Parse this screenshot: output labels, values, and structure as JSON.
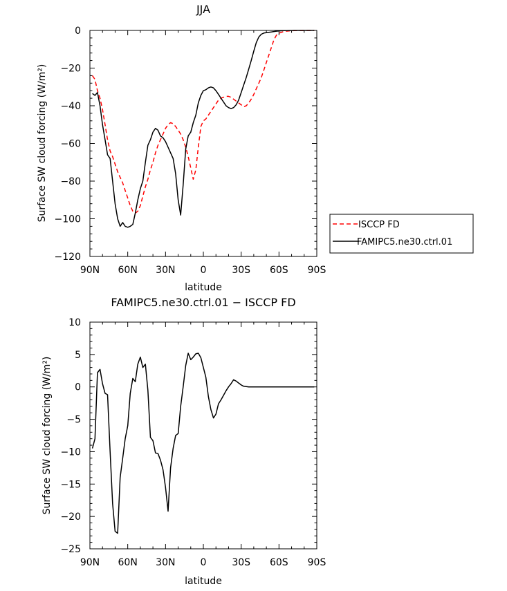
{
  "chart_data": [
    {
      "type": "line",
      "title": "JJA",
      "xlabel": "latitude",
      "ylabel": "Surface SW cloud forcing (W/m²)",
      "xlim": [
        90,
        -90
      ],
      "ylim": [
        -120,
        0
      ],
      "xticks": [
        90,
        60,
        30,
        0,
        -30,
        -60,
        -90
      ],
      "xtick_labels": [
        "90N",
        "60N",
        "30N",
        "0",
        "30S",
        "60S",
        "90S"
      ],
      "yticks": [
        0,
        -20,
        -40,
        -60,
        -80,
        -100,
        -120
      ],
      "ytick_labels": [
        "0",
        "−20",
        "−40",
        "−60",
        "−80",
        "−100",
        "−120"
      ],
      "legend": "outside-right",
      "series": [
        {
          "name": "ISCCP FD",
          "color": "#ff0000",
          "dash": "dashed",
          "x": [
            88,
            86,
            84,
            82,
            80,
            78,
            76,
            74,
            72,
            70,
            68,
            66,
            64,
            62,
            60,
            58,
            56,
            54,
            52,
            50,
            48,
            46,
            44,
            42,
            40,
            38,
            36,
            34,
            32,
            30,
            28,
            26,
            24,
            22,
            20,
            18,
            16,
            14,
            12,
            10,
            8,
            6,
            4,
            2,
            0,
            -2,
            -4,
            -6,
            -8,
            -10,
            -12,
            -14,
            -16,
            -18,
            -20,
            -22,
            -24,
            -26,
            -28,
            -30,
            -32,
            -34,
            -36,
            -38,
            -40,
            -42,
            -44,
            -46,
            -48,
            -50,
            -52,
            -54,
            -56,
            -58,
            -60,
            -62,
            -64,
            -66,
            -68,
            -70,
            -72,
            -74,
            -76,
            -78,
            -80,
            -82,
            -84,
            -86,
            -88
          ],
          "y": [
            -24,
            -26,
            -32,
            -36,
            -42,
            -50,
            -58,
            -64,
            -67,
            -71,
            -75,
            -78,
            -81,
            -85,
            -89,
            -93,
            -96,
            -97,
            -96,
            -93,
            -88,
            -83,
            -79,
            -74,
            -70,
            -65,
            -61,
            -58,
            -55,
            -52,
            -50,
            -49,
            -49.5,
            -51,
            -53,
            -55,
            -58,
            -62,
            -67,
            -73,
            -79,
            -74,
            -62,
            -51,
            -48,
            -47,
            -45,
            -43,
            -41,
            -39,
            -37,
            -36,
            -35.5,
            -35,
            -35,
            -35.5,
            -36.5,
            -37.5,
            -38.5,
            -39.5,
            -40.5,
            -40,
            -38.5,
            -36.5,
            -34,
            -31,
            -28,
            -25,
            -21,
            -17,
            -13,
            -9,
            -5,
            -2.5,
            -1.5,
            -1,
            -0.6,
            -0.4,
            -0.3,
            -0.2,
            -0.1,
            -0.1,
            -0.05,
            -0.02,
            0,
            0,
            0,
            0,
            0
          ]
        },
        {
          "name": "FAMIPC5.ne30.ctrl.01",
          "color": "#000000",
          "dash": "solid",
          "x": [
            88,
            86,
            84,
            82,
            80,
            78,
            76,
            74,
            72,
            70,
            68,
            66,
            64,
            62,
            60,
            58,
            56,
            54,
            52,
            50,
            48,
            46,
            44,
            42,
            40,
            38,
            36,
            34,
            32,
            30,
            28,
            26,
            24,
            22,
            20,
            18,
            16,
            14,
            12,
            10,
            8,
            6,
            4,
            2,
            0,
            -2,
            -4,
            -6,
            -8,
            -10,
            -12,
            -14,
            -16,
            -18,
            -20,
            -22,
            -24,
            -26,
            -28,
            -30,
            -32,
            -34,
            -36,
            -38,
            -40,
            -42,
            -44,
            -46,
            -48,
            -50,
            -52,
            -54,
            -56,
            -58,
            -60,
            -62,
            -64,
            -66,
            -68,
            -70,
            -72,
            -74,
            -76,
            -78,
            -80,
            -82,
            -84,
            -86,
            -88
          ],
          "y": [
            -33.5,
            -34.5,
            -33,
            -40,
            -50,
            -58,
            -66,
            -68,
            -80,
            -92,
            -100,
            -104,
            -102,
            -104,
            -104.5,
            -104,
            -103,
            -97,
            -90,
            -84,
            -80,
            -70,
            -61,
            -58,
            -54,
            -52,
            -53,
            -56,
            -57,
            -59,
            -62,
            -65,
            -68,
            -76,
            -90,
            -98,
            -82,
            -63,
            -56,
            -54,
            -49,
            -45,
            -38.5,
            -34.5,
            -32,
            -31.5,
            -30.5,
            -30,
            -30.5,
            -32,
            -34,
            -36,
            -38,
            -40,
            -41,
            -41.5,
            -41,
            -39.5,
            -37,
            -33,
            -29,
            -25,
            -20.5,
            -16,
            -11,
            -6.5,
            -3.5,
            -2,
            -1.4,
            -1.2,
            -1,
            -0.8,
            -0.6,
            -0.4,
            -0.3,
            -0.2,
            -0.1,
            -0.1,
            -0.05,
            -0.02,
            0,
            0,
            0,
            0,
            0,
            0,
            0,
            0,
            0
          ]
        }
      ]
    },
    {
      "type": "line",
      "title": "FAMIPC5.ne30.ctrl.01 − ISCCP FD",
      "xlabel": "latitude",
      "ylabel": "Surface SW cloud forcing (W/m²)",
      "xlim": [
        90,
        -90
      ],
      "ylim": [
        -25,
        10
      ],
      "xticks": [
        90,
        60,
        30,
        0,
        -30,
        -60,
        -90
      ],
      "xtick_labels": [
        "90N",
        "60N",
        "30N",
        "0",
        "30S",
        "60S",
        "90S"
      ],
      "yticks": [
        10,
        5,
        0,
        -5,
        -10,
        -15,
        -20,
        -25
      ],
      "ytick_labels": [
        "10",
        "5",
        "0",
        "−5",
        "−10",
        "−15",
        "−20",
        "−25"
      ],
      "series": [
        {
          "color": "#000000",
          "dash": "solid",
          "x": [
            88,
            86,
            84,
            82,
            80,
            78,
            76,
            74,
            72,
            70,
            68,
            66,
            64,
            62,
            60,
            58,
            56,
            54,
            52,
            50,
            48,
            46,
            44,
            42,
            40,
            38,
            36,
            34,
            32,
            30,
            28,
            26,
            24,
            22,
            20,
            18,
            16,
            14,
            12,
            10,
            8,
            6,
            4,
            2,
            0,
            -2,
            -4,
            -6,
            -8,
            -10,
            -12,
            -14,
            -16,
            -18,
            -20,
            -22,
            -24,
            -26,
            -28,
            -30,
            -32,
            -34,
            -36,
            -38,
            -40,
            -42,
            -44,
            -46,
            -48,
            -50,
            -52,
            -54,
            -56,
            -58,
            -60,
            -62,
            -64,
            -66,
            -68,
            -70,
            -72,
            -74,
            -76,
            -78,
            -80,
            -82,
            -84,
            -86,
            -88
          ],
          "y": [
            -9.5,
            -8,
            2.2,
            2.7,
            0.5,
            -1,
            -1.2,
            -10,
            -18,
            -22.3,
            -22.6,
            -14,
            -11,
            -8,
            -6,
            -1,
            1.3,
            0.8,
            3.5,
            4.6,
            3,
            3.5,
            -0.5,
            -7.8,
            -8.3,
            -10.2,
            -10.3,
            -11.3,
            -12.8,
            -15.5,
            -19.2,
            -12.5,
            -9.5,
            -7.5,
            -7.2,
            -3,
            0,
            3.3,
            5.2,
            4.2,
            4.6,
            5.1,
            5.2,
            4.5,
            3,
            1.5,
            -1.5,
            -3.5,
            -4.8,
            -4.2,
            -2.6,
            -2,
            -1.3,
            -0.6,
            0,
            0.5,
            1.1,
            0.9,
            0.6,
            0.3,
            0.1,
            0.05,
            0,
            0,
            0,
            0,
            0,
            0,
            0,
            0,
            0,
            0,
            0,
            0,
            0,
            0,
            0,
            0,
            0,
            0,
            0,
            0,
            0,
            0,
            0,
            0,
            0,
            0,
            0
          ]
        }
      ]
    }
  ]
}
